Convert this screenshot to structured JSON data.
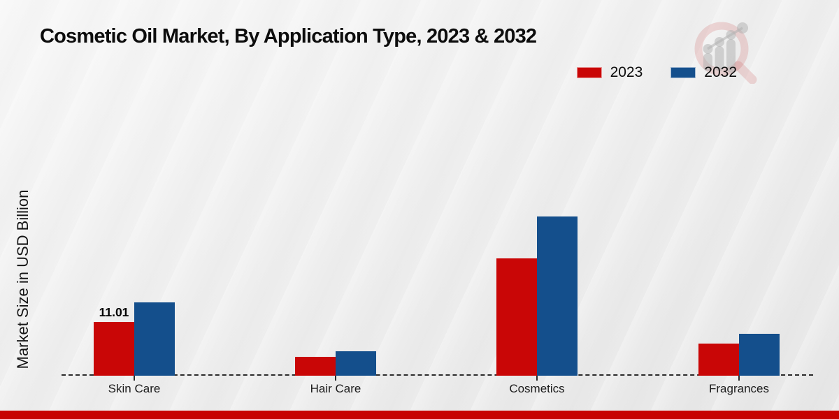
{
  "page": {
    "title": "Cosmetic Oil Market, By Application Type, 2023 & 2032"
  },
  "colors": {
    "series_2023": "#c90606",
    "series_2032": "#144f8c",
    "footer_bar": "#c70202",
    "axis_line": "#2b2b2b"
  },
  "legend": {
    "items": [
      {
        "label": "2023",
        "color": "#c90606"
      },
      {
        "label": "2032",
        "color": "#144f8c"
      }
    ]
  },
  "chart_data": {
    "type": "bar",
    "title": "Cosmetic Oil Market, By Application Type, 2023 & 2032",
    "categories": [
      "Skin Care",
      "Hair Care",
      "Cosmetics",
      "Fragrances"
    ],
    "series": [
      {
        "name": "2023",
        "color": "#c90606",
        "values": [
          11.01,
          3.9,
          24.0,
          6.5
        ],
        "data_labels": [
          "11.01",
          "",
          "",
          ""
        ]
      },
      {
        "name": "2032",
        "color": "#144f8c",
        "values": [
          15.0,
          5.0,
          32.5,
          8.6
        ],
        "data_labels": [
          "",
          "",
          "",
          ""
        ]
      }
    ],
    "xlabel": "",
    "ylabel": "Market Size in USD Billion",
    "ylim": [
      0,
      65
    ],
    "grid": false,
    "legend_position": "top-right",
    "baseline_style": "dashed",
    "data_label_note": "only Skin Care 2023 bar is labeled"
  },
  "watermark": {
    "name": "market-research-future-logo"
  }
}
